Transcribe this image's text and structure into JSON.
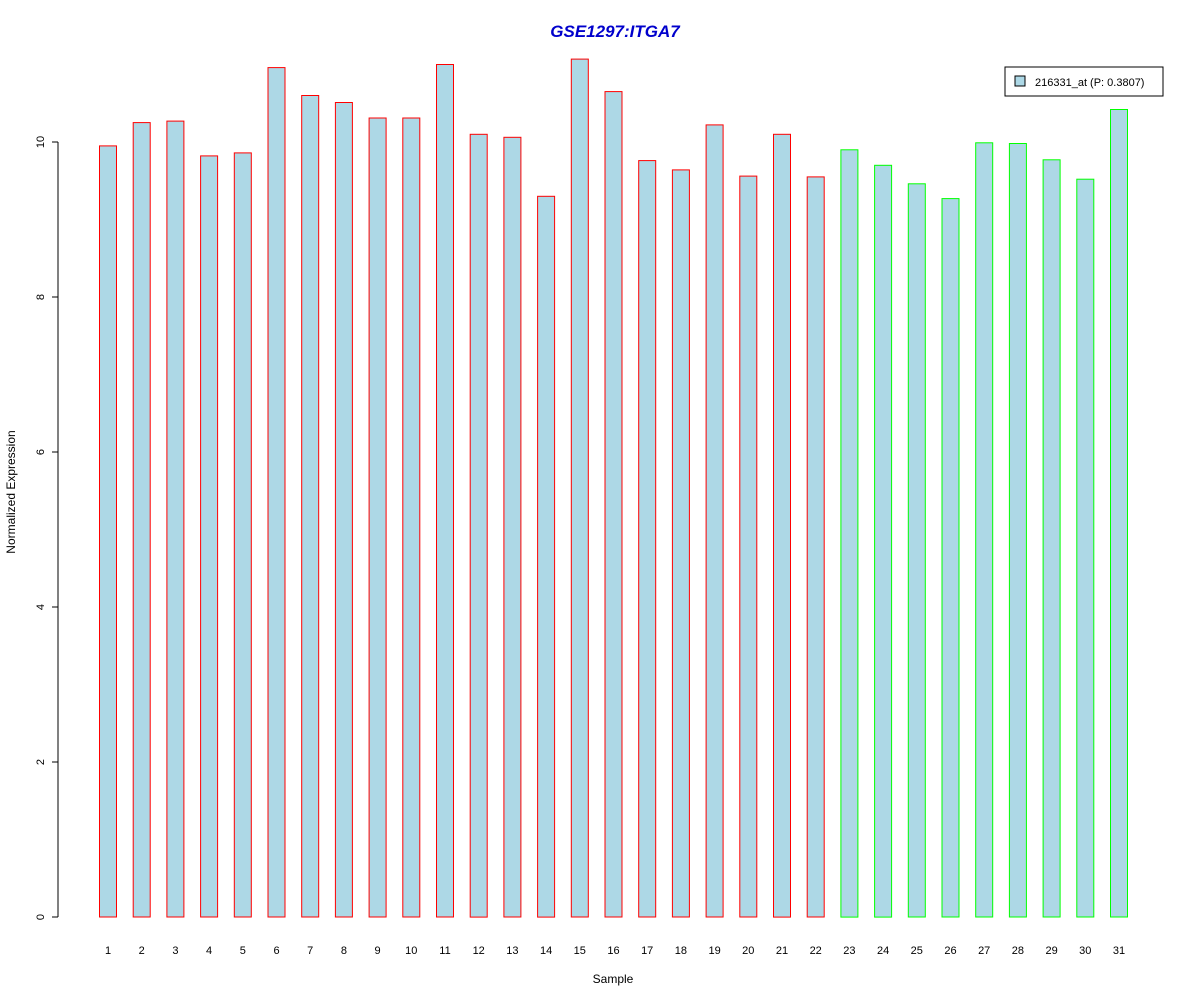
{
  "chart_data": {
    "type": "bar",
    "title": "GSE1297:ITGA7",
    "xlabel": "Sample",
    "ylabel": "Normalized Expression",
    "ylim": [
      0,
      11.2
    ],
    "yticks": [
      "0",
      "2",
      "4",
      "6",
      "8",
      "10"
    ],
    "categories": [
      "1",
      "2",
      "3",
      "4",
      "5",
      "6",
      "7",
      "8",
      "9",
      "10",
      "11",
      "12",
      "13",
      "14",
      "15",
      "16",
      "17",
      "18",
      "19",
      "20",
      "21",
      "22",
      "23",
      "24",
      "25",
      "26",
      "27",
      "28",
      "29",
      "30",
      "31"
    ],
    "series": [
      {
        "name": "216331_at (P: 0.3807)",
        "values": [
          9.95,
          10.25,
          10.27,
          9.82,
          9.86,
          10.96,
          10.6,
          10.51,
          10.31,
          10.31,
          11.0,
          10.1,
          10.06,
          9.3,
          11.07,
          10.65,
          9.76,
          9.64,
          10.22,
          9.56,
          10.1,
          9.55,
          9.9,
          9.7,
          9.46,
          9.27,
          9.99,
          9.98,
          9.77,
          9.52,
          10.42
        ],
        "fill": "#ADD8E6",
        "group_border_colors": {
          "group1": "#FF0000",
          "group2": "#00FF00"
        },
        "groups": [
          "group1",
          "group1",
          "group1",
          "group1",
          "group1",
          "group1",
          "group1",
          "group1",
          "group1",
          "group1",
          "group1",
          "group1",
          "group1",
          "group1",
          "group1",
          "group1",
          "group1",
          "group1",
          "group1",
          "group1",
          "group1",
          "group1",
          "group2",
          "group2",
          "group2",
          "group2",
          "group2",
          "group2",
          "group2",
          "group2",
          "group2"
        ]
      }
    ],
    "legend": {
      "label": "216331_at (P: 0.3807)",
      "position": "top-right"
    },
    "title_color": "#0000CC",
    "grid": false
  }
}
